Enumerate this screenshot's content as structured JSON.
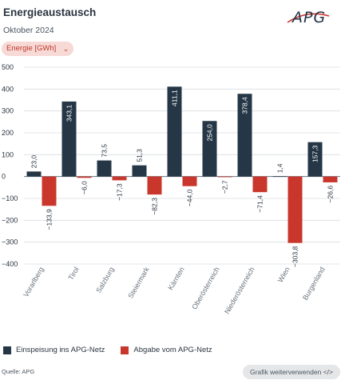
{
  "header": {
    "title": "Energieaustausch",
    "subtitle": "Oktober 2024",
    "logo_text": "APG"
  },
  "selector": {
    "label": "Energie [GWh]",
    "chevron_icon": "chevron-down-icon"
  },
  "legend": {
    "items": [
      {
        "label": "Einspeisung ins APG-Netz",
        "color": "#253746"
      },
      {
        "label": "Abgabe vom APG-Netz",
        "color": "#c9372c"
      }
    ]
  },
  "footer": {
    "source": "Quelle: APG",
    "reuse_label": "Grafik weiterverwenden </>"
  },
  "chart_data": {
    "type": "bar",
    "categories": [
      "Vorarlberg",
      "Tirol",
      "Salzburg",
      "Steiermark",
      "Kärnten",
      "Oberösterreich",
      "Niederösterreich",
      "Wien",
      "Burgenland"
    ],
    "series": [
      {
        "name": "Einspeisung ins APG-Netz",
        "color": "#253746",
        "values": [
          23.0,
          343.1,
          73.5,
          51.3,
          411.1,
          254.0,
          378.4,
          1.4,
          157.3
        ],
        "labels": [
          "23,0",
          "343,1",
          "73,5",
          "51,3",
          "411,1",
          "254,0",
          "378,4",
          "1,4",
          "157,3"
        ]
      },
      {
        "name": "Abgabe vom APG-Netz",
        "color": "#c9372c",
        "values": [
          -133.9,
          -6.0,
          -17.3,
          -82.3,
          -44.0,
          -2.7,
          -71.4,
          -303.8,
          -26.6
        ],
        "labels": [
          "−133,9",
          "−6,0",
          "−17,3",
          "−82,3",
          "−44,0",
          "−2,7",
          "−71,4",
          "−303,8",
          "−26,6"
        ]
      }
    ],
    "yticks": [
      500,
      400,
      300,
      200,
      100,
      0,
      -100,
      -200,
      -300,
      -400
    ],
    "ytick_labels": [
      "500",
      "400",
      "300",
      "200",
      "100",
      "0",
      "−100",
      "−200",
      "−300",
      "−400"
    ],
    "ylim": [
      -400,
      500
    ],
    "grid": true
  }
}
